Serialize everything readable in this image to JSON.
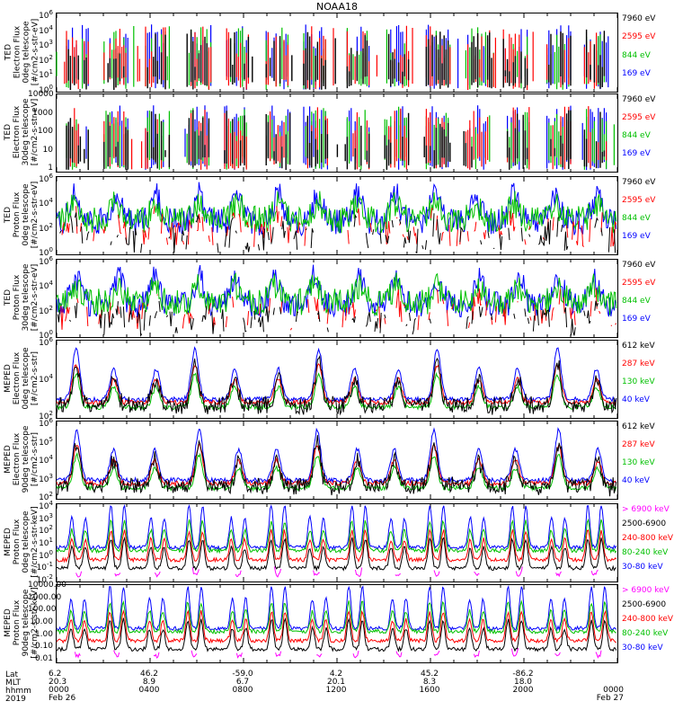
{
  "title": "NOAA18",
  "panels": [
    {
      "ylabel": "TED\nElectron Flux\n0deg telescope\n[#/cm2-s-str-eV]",
      "yticks": [
        "10^6",
        "10^4",
        "10^3",
        "10^2",
        "10^1",
        "10^0"
      ],
      "legend": [
        {
          "text": "7960 eV",
          "color": "#000000"
        },
        {
          "text": "2595 eV",
          "color": "#ff0000"
        },
        {
          "text": "844 eV",
          "color": "#00c000"
        },
        {
          "text": "169 eV",
          "color": "#0000ff"
        }
      ]
    },
    {
      "ylabel": "TED\nElectron Flux\n30deg telescope\n[#/cm2-s-str-eV]",
      "yticks": [
        "10000",
        "1000",
        "100",
        "10",
        "1"
      ],
      "legend": [
        {
          "text": "7960 eV",
          "color": "#000000"
        },
        {
          "text": "2595 eV",
          "color": "#ff0000"
        },
        {
          "text": "844 eV",
          "color": "#00c000"
        },
        {
          "text": "169 eV",
          "color": "#0000ff"
        }
      ]
    },
    {
      "ylabel": "TED\nProton Flux\n0deg telescope\n[#/cm2-s-str-eV]",
      "yticks": [
        "10^6",
        "10^4",
        "10^2",
        "10^0"
      ],
      "legend": [
        {
          "text": "7960 eV",
          "color": "#000000"
        },
        {
          "text": "2595 eV",
          "color": "#ff0000"
        },
        {
          "text": "844 eV",
          "color": "#00c000"
        },
        {
          "text": "169 eV",
          "color": "#0000ff"
        }
      ]
    },
    {
      "ylabel": "TED\nProton Flux\n30deg telescope\n[#/cm2-s-str-eV]",
      "yticks": [
        "10^6",
        "10^4",
        "10^2",
        "10^0"
      ],
      "legend": [
        {
          "text": "7960 eV",
          "color": "#000000"
        },
        {
          "text": "2595 eV",
          "color": "#ff0000"
        },
        {
          "text": "844 eV",
          "color": "#00c000"
        },
        {
          "text": "169 eV",
          "color": "#0000ff"
        }
      ]
    },
    {
      "ylabel": "MEPED\nElectron Flux\n0deg telescope\n[#/cm2-s-str]",
      "yticks": [
        "10^6",
        "10^4",
        "10^2"
      ],
      "legend": [
        {
          "text": "612 keV",
          "color": "#000000"
        },
        {
          "text": "287 keV",
          "color": "#ff0000"
        },
        {
          "text": "130 keV",
          "color": "#00c000"
        },
        {
          "text": "40 keV",
          "color": "#0000ff"
        }
      ]
    },
    {
      "ylabel": "MEPED\nElectron Flux\n90deg telescope\n[#/cm2-s-str]",
      "yticks": [
        "10^6",
        "10^5",
        "10^4",
        "10^3",
        "10^2"
      ],
      "legend": [
        {
          "text": "612 keV",
          "color": "#000000"
        },
        {
          "text": "287 keV",
          "color": "#ff0000"
        },
        {
          "text": "130 keV",
          "color": "#00c000"
        },
        {
          "text": "40 keV",
          "color": "#0000ff"
        }
      ]
    },
    {
      "ylabel": "MEPED\nProton Flux\n0deg telescope\n[#/cm2-s-str-keV]",
      "yticks": [
        "10^4",
        "10^3",
        "10^2",
        "10^1",
        "10^0",
        "10^-1",
        "10^-2"
      ],
      "legend": [
        {
          "text": "> 6900 keV",
          "color": "#ff00ff"
        },
        {
          "text": "2500-6900",
          "color": "#000000"
        },
        {
          "text": "240-800 keV",
          "color": "#ff0000"
        },
        {
          "text": "80-240 keV",
          "color": "#00c000"
        },
        {
          "text": "30-80 keV",
          "color": "#0000ff"
        }
      ]
    },
    {
      "ylabel": "MEPED\nProton Flux\n90deg telescope\n[#/cm2-s-str-keV]",
      "yticks": [
        "10000.00",
        "1000.00",
        "100.00",
        "10.00",
        "1.00",
        "0.10",
        "0.01"
      ],
      "legend": [
        {
          "text": "> 6900 keV",
          "color": "#ff00ff"
        },
        {
          "text": "2500-6900",
          "color": "#000000"
        },
        {
          "text": "240-800 keV",
          "color": "#ff0000"
        },
        {
          "text": "80-240 keV",
          "color": "#00c000"
        },
        {
          "text": "30-80 keV",
          "color": "#0000ff"
        }
      ]
    }
  ],
  "x_axis": {
    "row_labels": [
      "Lat",
      "MLT",
      "hhmm",
      "2019"
    ],
    "ticks": [
      {
        "lat": "6.2",
        "mlt": "20.3",
        "hhmm": "0000",
        "date": "Feb 26"
      },
      {
        "lat": "46.2",
        "mlt": "8.9",
        "hhmm": "0400",
        "date": ""
      },
      {
        "lat": "-59.0",
        "mlt": "6.7",
        "hhmm": "0800",
        "date": ""
      },
      {
        "lat": "4.2",
        "mlt": "20.1",
        "hhmm": "1200",
        "date": ""
      },
      {
        "lat": "45.2",
        "mlt": "8.3",
        "hhmm": "1600",
        "date": ""
      },
      {
        "lat": "-86.2",
        "mlt": "18.0",
        "hhmm": "2000",
        "date": ""
      },
      {
        "lat": "",
        "mlt": "",
        "hhmm": "0000",
        "date": "Feb 27"
      }
    ]
  },
  "chart_data": {
    "type": "line",
    "title": "NOAA18",
    "x_range_hours": [
      0,
      24
    ],
    "x_ticks": [
      "0000",
      "0400",
      "0800",
      "1200",
      "1600",
      "2000",
      "0000"
    ],
    "y_scale": "log",
    "panels": [
      {
        "name": "TED Electron Flux 0deg",
        "ylim": [
          1,
          1000000
        ],
        "series": [
          "7960 eV",
          "2595 eV",
          "844 eV",
          "169 eV"
        ],
        "pattern": "sparse spikes",
        "base": 30,
        "peak": 100000
      },
      {
        "name": "TED Electron Flux 30deg",
        "ylim": [
          1,
          10000
        ],
        "series": [
          "7960 eV",
          "2595 eV",
          "844 eV",
          "169 eV"
        ],
        "pattern": "sparse spikes",
        "base": 20,
        "peak": 5000
      },
      {
        "name": "TED Proton Flux 0deg",
        "ylim": [
          1,
          1000000
        ],
        "series": [
          "7960 eV",
          "2595 eV",
          "844 eV",
          "169 eV"
        ],
        "pattern": "dense noisy",
        "base": 100,
        "peak": 10000
      },
      {
        "name": "TED Proton Flux 30deg",
        "ylim": [
          1,
          1000000
        ],
        "series": [
          "7960 eV",
          "2595 eV",
          "844 eV",
          "169 eV"
        ],
        "pattern": "dense noisy",
        "base": 100,
        "peak": 10000
      },
      {
        "name": "MEPED Electron Flux 0deg",
        "ylim": [
          100,
          1000000
        ],
        "series": [
          "612 keV",
          "287 keV",
          "130 keV",
          "40 keV"
        ],
        "pattern": "radiation belt peaks",
        "base": 200,
        "peak": 500000
      },
      {
        "name": "MEPED Electron Flux 90deg",
        "ylim": [
          100,
          1000000
        ],
        "series": [
          "612 keV",
          "287 keV",
          "130 keV",
          "40 keV"
        ],
        "pattern": "radiation belt peaks",
        "base": 300,
        "peak": 500000
      },
      {
        "name": "MEPED Proton Flux 0deg",
        "ylim": [
          0.01,
          10000
        ],
        "series": [
          "> 6900 keV",
          "2500-6900",
          "240-800 keV",
          "80-240 keV",
          "30-80 keV"
        ],
        "pattern": "periodic peaks",
        "base": 1,
        "peak": 1000
      },
      {
        "name": "MEPED Proton Flux 90deg",
        "ylim": [
          0.01,
          10000
        ],
        "series": [
          "> 6900 keV",
          "2500-6900",
          "240-800 keV",
          "80-240 keV",
          "30-80 keV"
        ],
        "pattern": "periodic peaks",
        "base": 1,
        "peak": 1000
      }
    ]
  }
}
